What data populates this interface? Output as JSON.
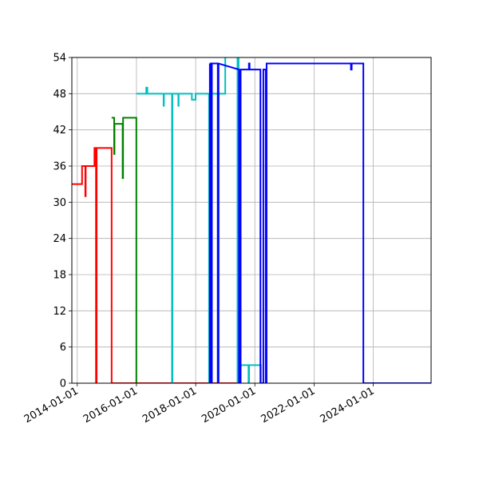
{
  "chart_data": {
    "type": "line",
    "title": "",
    "xlabel": "",
    "ylabel": "",
    "xlim": [
      "2013-10-26",
      "2025-12-15"
    ],
    "ylim": [
      0,
      54
    ],
    "grid": true,
    "x_ticks": [
      "2014-01-01",
      "2016-01-01",
      "2018-01-01",
      "2020-01-01",
      "2022-01-01",
      "2024-01-01"
    ],
    "y_ticks": [
      0,
      6,
      12,
      18,
      24,
      30,
      36,
      42,
      48,
      54
    ],
    "series": [
      {
        "color": "#ff0000",
        "points": [
          [
            "2013-10-26",
            33
          ],
          [
            "2014-03-01",
            33
          ],
          [
            "2014-03-01",
            36
          ],
          [
            "2014-04-10",
            36
          ],
          [
            "2014-04-10",
            31
          ],
          [
            "2014-04-15",
            31
          ],
          [
            "2014-04-15",
            36
          ],
          [
            "2014-08-01",
            36
          ],
          [
            "2014-08-01",
            39
          ],
          [
            "2014-08-20",
            39
          ],
          [
            "2014-08-20",
            0
          ],
          [
            "2014-08-28",
            0
          ],
          [
            "2014-08-28",
            39
          ],
          [
            "2015-03-01",
            39
          ],
          [
            "2015-03-01",
            0
          ],
          [
            "2016-02-01",
            0
          ],
          [
            "2016-02-01",
            0
          ],
          [
            "2019-06-10",
            0
          ]
        ]
      },
      {
        "color": "#008000",
        "points": [
          [
            "2015-03-01",
            44
          ],
          [
            "2015-04-01",
            44
          ],
          [
            "2015-04-01",
            38
          ],
          [
            "2015-04-05",
            38
          ],
          [
            "2015-04-05",
            43
          ],
          [
            "2015-07-15",
            43
          ],
          [
            "2015-07-15",
            34
          ],
          [
            "2015-07-20",
            34
          ],
          [
            "2015-07-20",
            44
          ],
          [
            "2015-12-31",
            44
          ],
          [
            "2015-12-31",
            0
          ]
        ]
      },
      {
        "color": "#00bfbf",
        "points": [
          [
            "2015-12-31",
            48
          ],
          [
            "2016-05-01",
            48
          ],
          [
            "2016-05-01",
            49
          ],
          [
            "2016-05-15",
            49
          ],
          [
            "2016-05-15",
            48
          ],
          [
            "2016-12-01",
            48
          ],
          [
            "2016-12-01",
            46
          ],
          [
            "2016-12-05",
            46
          ],
          [
            "2016-12-05",
            48
          ],
          [
            "2017-03-15",
            48
          ],
          [
            "2017-03-15",
            0
          ],
          [
            "2017-03-20",
            0
          ],
          [
            "2017-03-20",
            48
          ],
          [
            "2017-06-01",
            48
          ],
          [
            "2017-06-01",
            46
          ],
          [
            "2017-06-05",
            46
          ],
          [
            "2017-06-05",
            48
          ],
          [
            "2017-11-15",
            48
          ],
          [
            "2017-11-15",
            47
          ],
          [
            "2017-12-31",
            47
          ],
          [
            "2017-12-31",
            48
          ],
          [
            "2018-06-15",
            48
          ],
          [
            "2018-06-15",
            0
          ],
          [
            "2018-06-25",
            0
          ],
          [
            "2018-06-25",
            48
          ],
          [
            "2018-07-05",
            48
          ],
          [
            "2018-07-05",
            0
          ],
          [
            "2018-07-12",
            0
          ],
          [
            "2018-07-12",
            48
          ],
          [
            "2018-10-01",
            48
          ],
          [
            "2018-10-01",
            0
          ],
          [
            "2018-10-10",
            0
          ],
          [
            "2018-10-10",
            48
          ],
          [
            "2019-01-01",
            48
          ],
          [
            "2019-01-01",
            55
          ],
          [
            "2019-06-01",
            55
          ],
          [
            "2019-06-01",
            0
          ],
          [
            "2019-06-08",
            0
          ],
          [
            "2019-06-08",
            55
          ],
          [
            "2019-06-15",
            55
          ],
          [
            "2019-06-15",
            3
          ],
          [
            "2019-10-15",
            3
          ],
          [
            "2019-10-15",
            0
          ],
          [
            "2019-10-22",
            0
          ],
          [
            "2019-10-22",
            3
          ],
          [
            "2020-03-15",
            3
          ],
          [
            "2020-03-15",
            0
          ],
          [
            "2020-04-01",
            0
          ]
        ]
      },
      {
        "color": "#0000ff",
        "points": [
          [
            "2018-06-25",
            53
          ],
          [
            "2018-06-25",
            0
          ],
          [
            "2018-07-05",
            0
          ],
          [
            "2018-07-05",
            53
          ],
          [
            "2018-07-12",
            53
          ],
          [
            "2018-07-12",
            0
          ],
          [
            "2018-07-20",
            0
          ],
          [
            "2018-07-20",
            53
          ],
          [
            "2018-10-01",
            53
          ],
          [
            "2018-10-01",
            0
          ],
          [
            "2018-10-10",
            0
          ],
          [
            "2018-10-10",
            53
          ],
          [
            "2019-06-20",
            52
          ],
          [
            "2019-06-20",
            0
          ],
          [
            "2019-07-10",
            0
          ],
          [
            "2019-07-10",
            52
          ],
          [
            "2019-10-20",
            52
          ],
          [
            "2019-10-20",
            53
          ],
          [
            "2019-10-28",
            53
          ],
          [
            "2019-10-28",
            52
          ],
          [
            "2020-03-10",
            52
          ],
          [
            "2020-03-10",
            0
          ],
          [
            "2020-04-15",
            0
          ],
          [
            "2020-04-15",
            52
          ],
          [
            "2020-05-15",
            52
          ],
          [
            "2020-05-15",
            0
          ],
          [
            "2020-05-25",
            0
          ],
          [
            "2020-05-25",
            53
          ],
          [
            "2023-04-01",
            53
          ],
          [
            "2023-04-01",
            52
          ],
          [
            "2023-04-10",
            52
          ],
          [
            "2023-04-10",
            53
          ],
          [
            "2023-09-01",
            53
          ],
          [
            "2023-09-01",
            0
          ],
          [
            "2025-12-15",
            0
          ]
        ]
      }
    ]
  }
}
